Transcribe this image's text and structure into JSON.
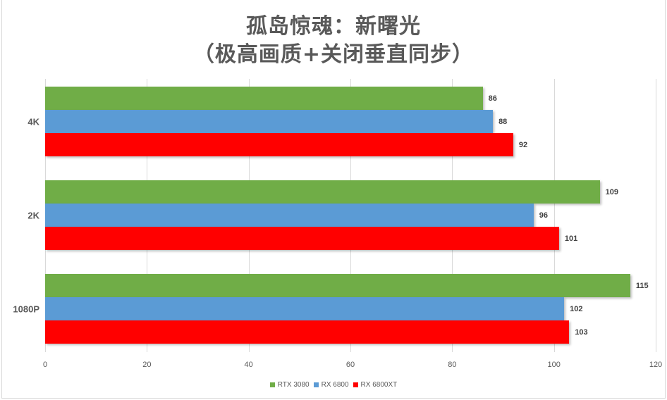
{
  "title": {
    "line1": "孤岛惊魂：新曙光",
    "line2": "（极高画质+关闭垂直同步）"
  },
  "colors": {
    "RTX 3080": "#70ad47",
    "RX 6800": "#5b9bd5",
    "RX 6800XT": "#ff0000"
  },
  "chart_data": {
    "type": "bar",
    "orientation": "horizontal",
    "title": "孤岛惊魂：新曙光（极高画质+关闭垂直同步）",
    "categories": [
      "4K",
      "2K",
      "1080P"
    ],
    "series": [
      {
        "name": "RTX 3080",
        "color": "#70ad47",
        "values": [
          86,
          109,
          115
        ]
      },
      {
        "name": "RX 6800",
        "color": "#5b9bd5",
        "values": [
          88,
          96,
          102
        ]
      },
      {
        "name": "RX 6800XT",
        "color": "#ff0000",
        "values": [
          92,
          101,
          103
        ]
      }
    ],
    "xlabel": "",
    "ylabel": "",
    "xlim": [
      0,
      120
    ],
    "xticks": [
      0,
      20,
      40,
      60,
      80,
      100,
      120
    ],
    "grid": true,
    "legend_position": "bottom",
    "data_labels": true
  },
  "axis": {
    "ticks": [
      "0",
      "20",
      "40",
      "60",
      "80",
      "100",
      "120"
    ]
  },
  "legend": [
    {
      "label": "RTX 3080",
      "color": "#70ad47"
    },
    {
      "label": "RX 6800",
      "color": "#5b9bd5"
    },
    {
      "label": "RX 6800XT",
      "color": "#ff0000"
    }
  ]
}
